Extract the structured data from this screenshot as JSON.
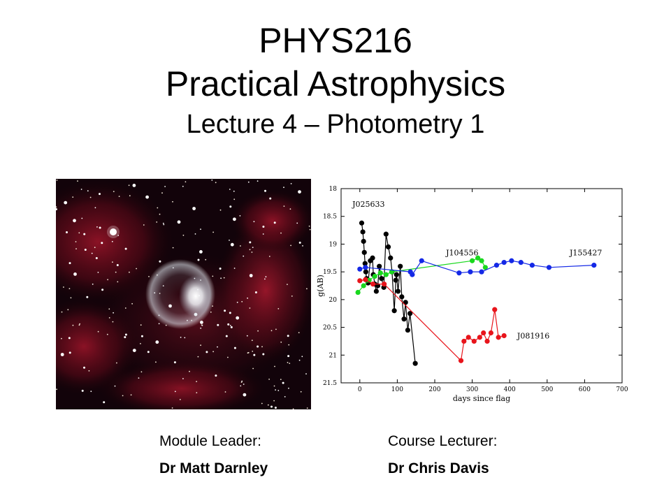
{
  "slide": {
    "course_code": "PHYS216",
    "course_title": "Practical Astrophysics",
    "lecture": "Lecture 4 – Photometry 1"
  },
  "credits": {
    "module_leader_label": "Module Leader:",
    "module_leader_name": "Dr Matt Darnley",
    "course_lecturer_label": "Course Lecturer:",
    "course_lecturer_name": "Dr Chris Davis"
  },
  "images": {
    "nebula": "bubble-nebula-photo"
  },
  "chart_data": {
    "type": "line",
    "title": "",
    "xlabel": "days since flag",
    "ylabel": "g(AB)",
    "xlim": [
      -50,
      700
    ],
    "ylim": [
      18,
      21.5
    ],
    "y_inverted": true,
    "x_ticks": [
      "0",
      "100",
      "200",
      "300",
      "400",
      "500",
      "600",
      "700"
    ],
    "y_ticks": [
      "18",
      "18.5",
      "19",
      "19.5",
      "20",
      "20.5",
      "21",
      "21.5"
    ],
    "series": [
      {
        "name": "J025633",
        "color": "#000000",
        "label_at": [
          -20,
          18.33
        ],
        "points": [
          [
            5,
            18.62
          ],
          [
            8,
            18.78
          ],
          [
            10,
            18.95
          ],
          [
            12,
            19.15
          ],
          [
            14,
            19.35
          ],
          [
            16,
            19.5
          ],
          [
            18,
            19.62
          ],
          [
            22,
            19.7
          ],
          [
            28,
            19.3
          ],
          [
            34,
            19.25
          ],
          [
            36,
            19.55
          ],
          [
            40,
            19.72
          ],
          [
            44,
            19.85
          ],
          [
            48,
            19.75
          ],
          [
            52,
            19.4
          ],
          [
            58,
            19.62
          ],
          [
            64,
            19.78
          ],
          [
            70,
            18.82
          ],
          [
            76,
            19.05
          ],
          [
            82,
            19.25
          ],
          [
            86,
            19.5
          ],
          [
            92,
            20.2
          ],
          [
            96,
            19.65
          ],
          [
            98,
            19.55
          ],
          [
            102,
            19.85
          ],
          [
            108,
            19.4
          ],
          [
            112,
            19.95
          ],
          [
            118,
            20.35
          ],
          [
            122,
            20.05
          ],
          [
            128,
            20.55
          ],
          [
            134,
            20.25
          ],
          [
            148,
            21.15
          ]
        ]
      },
      {
        "name": "J104556",
        "color": "#19d81e",
        "label_at": [
          230,
          19.2
        ],
        "points": [
          [
            -5,
            19.87
          ],
          [
            10,
            19.75
          ],
          [
            25,
            19.65
          ],
          [
            40,
            19.58
          ],
          [
            55,
            19.52
          ],
          [
            70,
            19.55
          ],
          [
            85,
            19.5
          ],
          [
            300,
            19.3
          ],
          [
            315,
            19.25
          ],
          [
            325,
            19.3
          ],
          [
            335,
            19.42
          ]
        ]
      },
      {
        "name": "J155427",
        "color": "#1428e6",
        "label_at": [
          560,
          19.2
        ],
        "points": [
          [
            0,
            19.45
          ],
          [
            15,
            19.42
          ],
          [
            135,
            19.5
          ],
          [
            140,
            19.55
          ],
          [
            165,
            19.3
          ],
          [
            265,
            19.52
          ],
          [
            295,
            19.5
          ],
          [
            325,
            19.5
          ],
          [
            365,
            19.38
          ],
          [
            385,
            19.33
          ],
          [
            405,
            19.3
          ],
          [
            430,
            19.33
          ],
          [
            460,
            19.38
          ],
          [
            505,
            19.42
          ],
          [
            625,
            19.38
          ]
        ]
      },
      {
        "name": "J081916",
        "color": "#e8141b",
        "label_at": [
          420,
          20.7
        ],
        "points": [
          [
            0,
            19.66
          ],
          [
            15,
            19.64
          ],
          [
            35,
            19.72
          ],
          [
            65,
            19.72
          ],
          [
            270,
            21.1
          ],
          [
            278,
            20.75
          ],
          [
            290,
            20.68
          ],
          [
            305,
            20.75
          ],
          [
            320,
            20.68
          ],
          [
            330,
            20.6
          ],
          [
            340,
            20.75
          ],
          [
            350,
            20.6
          ],
          [
            360,
            20.18
          ],
          [
            370,
            20.68
          ],
          [
            385,
            20.65
          ]
        ]
      }
    ]
  }
}
